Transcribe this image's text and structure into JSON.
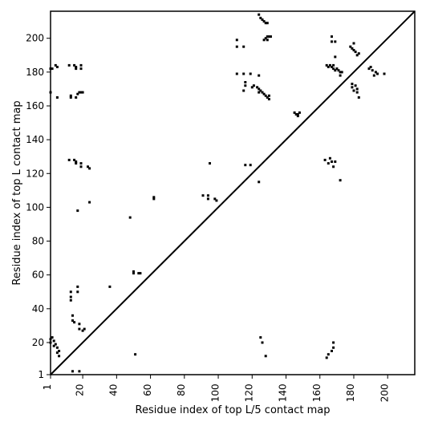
{
  "chart_data": {
    "type": "scatter",
    "xlabel": "Residue index of top L/5 contact map",
    "ylabel": "Residue index of top L contact map",
    "xlim": [
      1,
      216
    ],
    "ylim": [
      1,
      216
    ],
    "xticks": [
      1,
      20,
      40,
      60,
      80,
      100,
      120,
      140,
      160,
      180,
      200
    ],
    "yticks": [
      1,
      20,
      40,
      60,
      80,
      100,
      120,
      140,
      160,
      180,
      200
    ],
    "diagonal": true,
    "grid": false,
    "colors": {
      "points": "#000000",
      "line": "#000000",
      "background": "#ffffff"
    },
    "upper_points": [
      [
        1,
        168
      ],
      [
        1,
        182
      ],
      [
        2,
        182
      ],
      [
        4,
        184
      ],
      [
        5,
        183
      ],
      [
        5,
        165
      ],
      [
        12,
        184
      ],
      [
        13,
        165
      ],
      [
        13,
        166
      ],
      [
        15,
        184
      ],
      [
        16,
        183
      ],
      [
        16,
        182
      ],
      [
        16,
        165
      ],
      [
        17,
        167
      ],
      [
        18,
        168
      ],
      [
        19,
        182
      ],
      [
        19,
        184
      ],
      [
        19,
        168
      ],
      [
        20,
        168
      ],
      [
        12,
        128
      ],
      [
        15,
        128
      ],
      [
        16,
        127
      ],
      [
        16,
        126
      ],
      [
        19,
        126
      ],
      [
        19,
        124
      ],
      [
        23,
        124
      ],
      [
        24,
        123
      ],
      [
        24,
        103
      ],
      [
        17,
        98
      ],
      [
        48,
        94
      ],
      [
        62,
        106
      ],
      [
        62,
        105
      ],
      [
        91,
        107
      ],
      [
        94,
        107
      ],
      [
        94,
        105
      ],
      [
        95,
        126
      ],
      [
        98,
        105
      ],
      [
        99,
        104
      ],
      [
        111,
        199
      ],
      [
        111,
        195
      ],
      [
        115,
        195
      ],
      [
        111,
        179
      ],
      [
        115,
        179
      ],
      [
        119,
        179
      ],
      [
        115,
        169
      ],
      [
        116,
        172
      ],
      [
        116,
        174
      ],
      [
        120,
        171
      ],
      [
        121,
        172
      ],
      [
        124,
        178
      ],
      [
        116,
        125
      ],
      [
        119,
        125
      ],
      [
        124,
        115
      ],
      [
        123,
        171
      ],
      [
        124,
        170
      ],
      [
        124,
        168
      ],
      [
        125,
        169
      ],
      [
        126,
        168
      ],
      [
        127,
        167
      ],
      [
        128,
        166
      ],
      [
        129,
        165
      ],
      [
        130,
        164
      ],
      [
        130,
        166
      ],
      [
        124,
        214
      ],
      [
        125,
        212
      ],
      [
        126,
        211
      ],
      [
        127,
        210
      ],
      [
        128,
        209
      ],
      [
        129,
        209
      ],
      [
        127,
        199
      ],
      [
        128,
        200
      ],
      [
        129,
        201
      ],
      [
        130,
        201
      ],
      [
        131,
        201
      ],
      [
        129,
        199
      ],
      [
        145,
        156
      ],
      [
        146,
        155
      ],
      [
        147,
        155
      ],
      [
        148,
        156
      ],
      [
        147,
        154
      ],
      [
        164,
        184
      ],
      [
        165,
        183
      ],
      [
        166,
        184
      ],
      [
        167,
        183
      ],
      [
        168,
        182
      ],
      [
        168,
        184
      ],
      [
        169,
        181
      ],
      [
        170,
        182
      ],
      [
        171,
        181
      ],
      [
        172,
        180
      ],
      [
        172,
        178
      ],
      [
        173,
        180
      ],
      [
        169,
        189
      ],
      [
        167,
        201
      ],
      [
        167,
        198
      ],
      [
        169,
        198
      ],
      [
        178,
        195
      ],
      [
        179,
        194
      ],
      [
        180,
        193
      ],
      [
        180,
        197
      ],
      [
        181,
        192
      ],
      [
        182,
        190
      ],
      [
        183,
        191
      ],
      [
        179,
        173
      ],
      [
        179,
        171
      ],
      [
        180,
        169
      ],
      [
        181,
        172
      ],
      [
        182,
        170
      ],
      [
        182,
        168
      ],
      [
        183,
        165
      ],
      [
        189,
        182
      ],
      [
        190,
        183
      ],
      [
        191,
        181
      ],
      [
        192,
        178
      ],
      [
        193,
        180
      ],
      [
        194,
        179
      ],
      [
        198,
        179
      ],
      [
        163,
        128
      ],
      [
        165,
        126
      ],
      [
        166,
        129
      ],
      [
        167,
        127
      ],
      [
        168,
        124
      ],
      [
        169,
        127
      ],
      [
        172,
        116
      ]
    ],
    "lower_points": [
      [
        1,
        20
      ],
      [
        1,
        22
      ],
      [
        2,
        23
      ],
      [
        3,
        18
      ],
      [
        3,
        21
      ],
      [
        4,
        19
      ],
      [
        5,
        14
      ],
      [
        5,
        17
      ],
      [
        6,
        15
      ],
      [
        6,
        12
      ],
      [
        13,
        50
      ],
      [
        13,
        47
      ],
      [
        13,
        45
      ],
      [
        14,
        36
      ],
      [
        14,
        33
      ],
      [
        15,
        32
      ],
      [
        17,
        50
      ],
      [
        17,
        53
      ],
      [
        18,
        31
      ],
      [
        18,
        28
      ],
      [
        20,
        27
      ],
      [
        21,
        28
      ],
      [
        36,
        53
      ],
      [
        14,
        3
      ],
      [
        18,
        3
      ],
      [
        50,
        62
      ],
      [
        50,
        61
      ],
      [
        51,
        13
      ],
      [
        53,
        61
      ],
      [
        54,
        61
      ],
      [
        125,
        23
      ],
      [
        126,
        20
      ],
      [
        128,
        12
      ],
      [
        164,
        11
      ],
      [
        165,
        13
      ],
      [
        167,
        15
      ],
      [
        168,
        17
      ],
      [
        168,
        20
      ]
    ]
  }
}
